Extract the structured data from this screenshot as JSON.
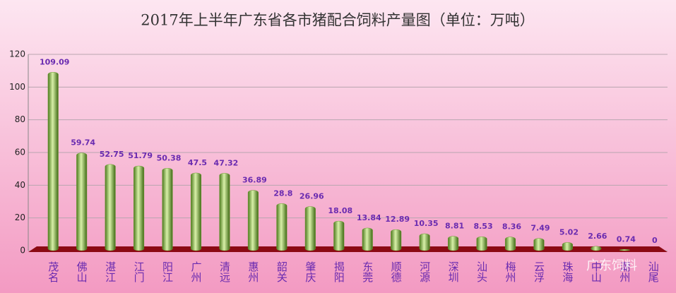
{
  "chart_data": {
    "type": "bar",
    "title": "2017年上半年广东省各市猪配合饲料产量图（单位：万吨）",
    "categories": [
      "茂名",
      "佛山",
      "湛江",
      "江门",
      "阳江",
      "广州",
      "清远",
      "惠州",
      "韶关",
      "肇庆",
      "揭阳",
      "东莞",
      "顺德",
      "河源",
      "深圳",
      "汕头",
      "梅州",
      "云浮",
      "珠海",
      "中山",
      "潮州",
      "汕尾"
    ],
    "values": [
      109.09,
      59.74,
      52.75,
      51.79,
      50.38,
      47.5,
      47.32,
      36.89,
      28.8,
      26.96,
      18.08,
      13.84,
      12.89,
      10.35,
      8.81,
      8.53,
      8.36,
      7.49,
      5.02,
      2.66,
      0.74,
      0
    ],
    "color": "#6a9a2e",
    "ylim": [
      0,
      120
    ],
    "yticks": [
      0,
      20,
      40,
      60,
      80,
      100,
      120
    ],
    "grid": true,
    "watermark": "广东饲料"
  }
}
